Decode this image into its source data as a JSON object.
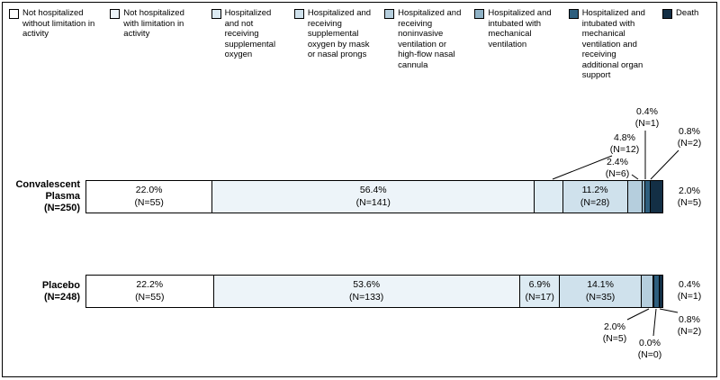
{
  "chart_data": {
    "type": "bar",
    "subtype": "horizontal-stacked-100pct",
    "title": "",
    "xlabel": "",
    "ylabel": "",
    "legend_position": "top",
    "axis": "none",
    "categories": [
      {
        "label": "Not hospitalized without limitation in activity",
        "color": "#ffffff"
      },
      {
        "label": "Not hospitalized with limitation in activity",
        "color": "#edf4f9"
      },
      {
        "label": "Hospitalized and not receiving supplemental oxygen",
        "color": "#ddebf3"
      },
      {
        "label": "Hospitalized and receiving supplemental oxygen by mask or nasal prongs",
        "color": "#cfe1ec"
      },
      {
        "label": "Hospitalized and receiving noninvasive ventilation or high-flow nasal cannula",
        "color": "#b5cedd"
      },
      {
        "label": "Hospitalized and intubated with mechanical ventilation",
        "color": "#8fb2c6"
      },
      {
        "label": "Hospitalized and intubated with mechanical ventilation and receiving additional organ support",
        "color": "#2e5f7e"
      },
      {
        "label": "Death",
        "color": "#132f45"
      }
    ],
    "series": [
      {
        "name": "Convalescent Plasma",
        "name_lines": [
          "Convalescent",
          "Plasma",
          "(N=250)"
        ],
        "total_n": 250,
        "values": [
          {
            "pct": 22.0,
            "n": 55,
            "pct_label": "22.0%",
            "n_label": "(N=55)",
            "label_position": "inside"
          },
          {
            "pct": 56.4,
            "n": 141,
            "pct_label": "56.4%",
            "n_label": "(N=141)",
            "label_position": "inside"
          },
          {
            "pct": 4.8,
            "n": 12,
            "pct_label": "4.8%",
            "n_label": "(N=12)",
            "label_position": "callout-above"
          },
          {
            "pct": 11.2,
            "n": 28,
            "pct_label": "11.2%",
            "n_label": "(N=28)",
            "label_position": "inside"
          },
          {
            "pct": 2.4,
            "n": 6,
            "pct_label": "2.4%",
            "n_label": "(N=6)",
            "label_position": "callout-above"
          },
          {
            "pct": 0.4,
            "n": 1,
            "pct_label": "0.4%",
            "n_label": "(N=1)",
            "label_position": "callout-above"
          },
          {
            "pct": 0.8,
            "n": 2,
            "pct_label": "0.8%",
            "n_label": "(N=2)",
            "label_position": "callout-above"
          },
          {
            "pct": 2.0,
            "n": 5,
            "pct_label": "2.0%",
            "n_label": "(N=5)",
            "label_position": "side-right"
          }
        ]
      },
      {
        "name": "Placebo",
        "name_lines": [
          "Placebo",
          "(N=248)"
        ],
        "total_n": 248,
        "values": [
          {
            "pct": 22.2,
            "n": 55,
            "pct_label": "22.2%",
            "n_label": "(N=55)",
            "label_position": "inside"
          },
          {
            "pct": 53.6,
            "n": 133,
            "pct_label": "53.6%",
            "n_label": "(N=133)",
            "label_position": "inside"
          },
          {
            "pct": 6.9,
            "n": 17,
            "pct_label": "6.9%",
            "n_label": "(N=17)",
            "label_position": "inside"
          },
          {
            "pct": 14.1,
            "n": 35,
            "pct_label": "14.1%",
            "n_label": "(N=35)",
            "label_position": "inside"
          },
          {
            "pct": 2.0,
            "n": 5,
            "pct_label": "2.0%",
            "n_label": "(N=5)",
            "label_position": "callout-below"
          },
          {
            "pct": 0.0,
            "n": 0,
            "pct_label": "0.0%",
            "n_label": "(N=0)",
            "label_position": "callout-below"
          },
          {
            "pct": 0.8,
            "n": 2,
            "pct_label": "0.8%",
            "n_label": "(N=2)",
            "label_position": "callout-below"
          },
          {
            "pct": 0.4,
            "n": 1,
            "pct_label": "0.4%",
            "n_label": "(N=1)",
            "label_position": "side-right"
          }
        ]
      }
    ]
  }
}
